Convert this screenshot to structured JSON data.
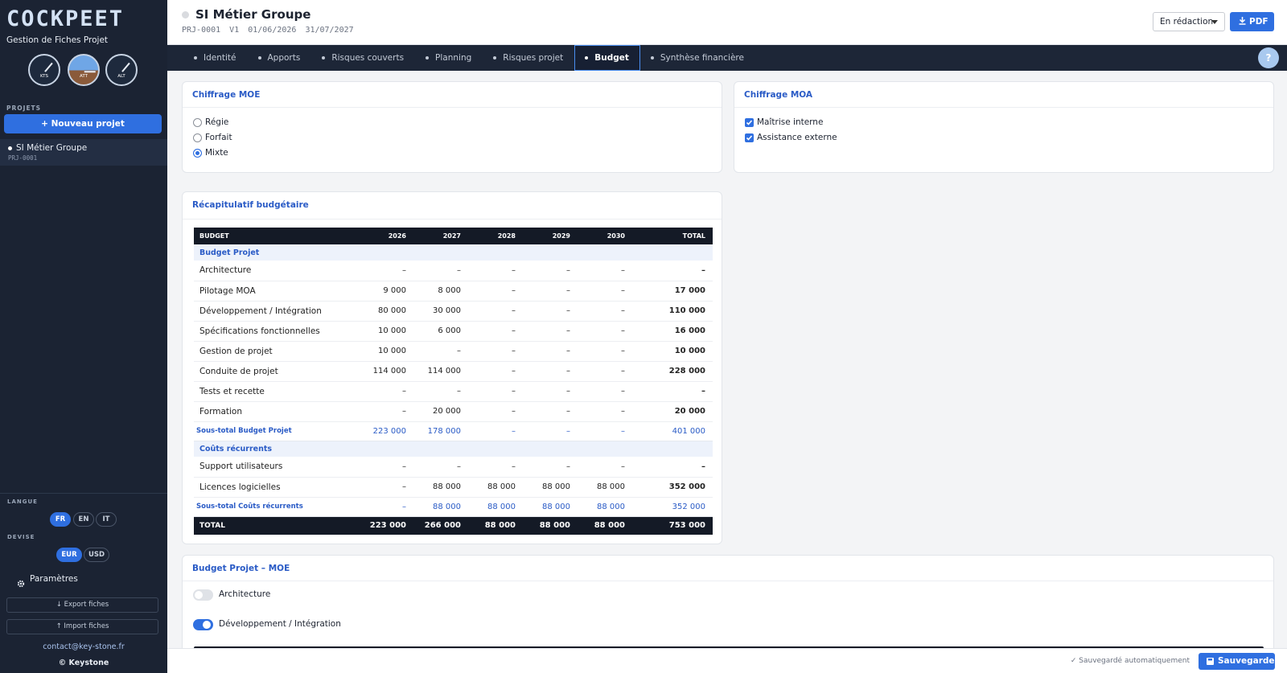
{
  "sidebar": {
    "brand": "COCKPEET",
    "subtitle": "Gestion de Fiches Projet",
    "gauges": [
      "KTS",
      "ATT",
      "ALT"
    ],
    "projects_label": "PROJETS",
    "new_project": "+ Nouveau projet",
    "projects": [
      {
        "name": "SI Métier Groupe",
        "code": "PRJ-0001"
      }
    ],
    "language_label": "LANGUE",
    "languages": [
      "FR",
      "EN",
      "IT"
    ],
    "active_language": 0,
    "currency_label": "DEVISE",
    "currencies": [
      "EUR",
      "USD"
    ],
    "active_currency": 0,
    "settings": "Paramètres",
    "export": "↓ Export fiches",
    "import": "↑ Import fiches",
    "contact": "contact@key-stone.fr",
    "copyright": "© Keystone"
  },
  "header": {
    "title": "SI Métier Groupe",
    "meta": [
      "PRJ-0001",
      "V1",
      "01/06/2026",
      "31/07/2027"
    ],
    "status": "En rédaction",
    "pdf": "PDF"
  },
  "tabs": [
    "Identité",
    "Apports",
    "Risques couverts",
    "Planning",
    "Risques projet",
    "Budget",
    "Synthèse financière"
  ],
  "active_tab": 5,
  "help": "?",
  "moe": {
    "title": "Chiffrage MOE",
    "options": [
      "Régie",
      "Forfait",
      "Mixte"
    ],
    "selected": 2
  },
  "moa": {
    "title": "Chiffrage MOA",
    "options": [
      "Maîtrise interne",
      "Assistance externe"
    ],
    "checked": [
      true,
      true
    ]
  },
  "recap": {
    "title": "Récapitulatif budgétaire",
    "header": [
      "BUDGET",
      "2026",
      "2027",
      "2028",
      "2029",
      "2030",
      "TOTAL"
    ],
    "rows": [
      {
        "kind": "section",
        "label": "Budget Projet"
      },
      {
        "kind": "item",
        "cells": [
          "Architecture",
          "–",
          "–",
          "–",
          "–",
          "–",
          "–"
        ]
      },
      {
        "kind": "item",
        "cells": [
          "Pilotage MOA",
          "9 000",
          "8 000",
          "–",
          "–",
          "–",
          "17 000"
        ]
      },
      {
        "kind": "item",
        "cells": [
          "Développement / Intégration",
          "80 000",
          "30 000",
          "–",
          "–",
          "–",
          "110 000"
        ]
      },
      {
        "kind": "item",
        "cells": [
          "Spécifications fonctionnelles",
          "10 000",
          "6 000",
          "–",
          "–",
          "–",
          "16 000"
        ]
      },
      {
        "kind": "item",
        "cells": [
          "Gestion de projet",
          "10 000",
          "–",
          "–",
          "–",
          "–",
          "10 000"
        ]
      },
      {
        "kind": "item",
        "cells": [
          "Conduite de projet",
          "114 000",
          "114 000",
          "–",
          "–",
          "–",
          "228 000"
        ]
      },
      {
        "kind": "item",
        "cells": [
          "Tests et recette",
          "–",
          "–",
          "–",
          "–",
          "–",
          "–"
        ]
      },
      {
        "kind": "item",
        "cells": [
          "Formation",
          "–",
          "20 000",
          "–",
          "–",
          "–",
          "20 000"
        ]
      },
      {
        "kind": "subtotal",
        "cells": [
          "Sous-total Budget Projet",
          "223 000",
          "178 000",
          "–",
          "–",
          "–",
          "401 000"
        ]
      },
      {
        "kind": "section",
        "label": "Coûts récurrents"
      },
      {
        "kind": "item",
        "cells": [
          "Support utilisateurs",
          "–",
          "–",
          "–",
          "–",
          "–",
          "–"
        ]
      },
      {
        "kind": "item",
        "cells": [
          "Licences logicielles",
          "–",
          "88 000",
          "88 000",
          "88 000",
          "88 000",
          "352 000"
        ]
      },
      {
        "kind": "subtotal",
        "cells": [
          "Sous-total Coûts récurrents",
          "–",
          "88 000",
          "88 000",
          "88 000",
          "88 000",
          "352 000"
        ]
      },
      {
        "kind": "total",
        "cells": [
          "TOTAL",
          "223 000",
          "266 000",
          "88 000",
          "88 000",
          "88 000",
          "753 000"
        ]
      }
    ]
  },
  "detail": {
    "title": "Budget Projet – MOE",
    "toggles": [
      {
        "label": "Architecture",
        "on": false
      },
      {
        "label": "Développement / Intégration",
        "on": true
      }
    ]
  },
  "footer": {
    "autosave": "✓ Sauvegardé automatiquement",
    "save": "Sauvegarder"
  }
}
